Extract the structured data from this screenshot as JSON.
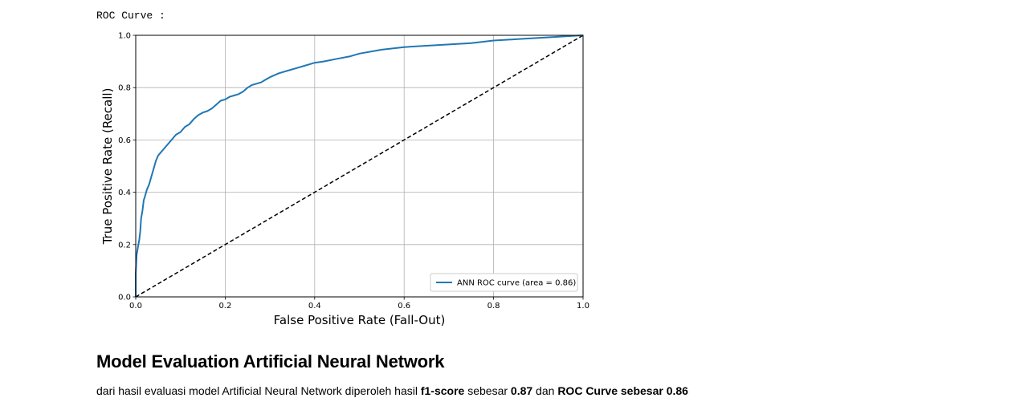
{
  "output": {
    "label": "ROC Curve :"
  },
  "chart_data": {
    "type": "line",
    "xlabel": "False Positive Rate (Fall-Out)",
    "ylabel": "True Positive Rate (Recall)",
    "xlim": [
      0,
      1
    ],
    "ylim": [
      0,
      1
    ],
    "xticks": [
      "0.0",
      "0.2",
      "0.4",
      "0.6",
      "0.8",
      "1.0"
    ],
    "yticks": [
      "0.0",
      "0.2",
      "0.4",
      "0.6",
      "0.8",
      "1.0"
    ],
    "grid": true,
    "legend_position": "lower-right",
    "series": [
      {
        "name": "ANN ROC curve (area = 0.86)",
        "color": "#1f77b4",
        "style": "solid",
        "x": [
          0.0,
          0.0,
          0.002,
          0.004,
          0.006,
          0.008,
          0.01,
          0.012,
          0.015,
          0.018,
          0.02,
          0.025,
          0.03,
          0.035,
          0.04,
          0.045,
          0.05,
          0.055,
          0.06,
          0.07,
          0.08,
          0.09,
          0.1,
          0.11,
          0.12,
          0.13,
          0.14,
          0.15,
          0.16,
          0.17,
          0.18,
          0.19,
          0.2,
          0.21,
          0.22,
          0.23,
          0.24,
          0.25,
          0.26,
          0.27,
          0.28,
          0.29,
          0.3,
          0.32,
          0.34,
          0.36,
          0.38,
          0.4,
          0.42,
          0.45,
          0.48,
          0.5,
          0.55,
          0.6,
          0.65,
          0.7,
          0.75,
          0.8,
          0.85,
          0.9,
          0.95,
          1.0
        ],
        "y": [
          0.0,
          0.09,
          0.16,
          0.18,
          0.2,
          0.22,
          0.25,
          0.3,
          0.33,
          0.37,
          0.38,
          0.41,
          0.43,
          0.46,
          0.49,
          0.52,
          0.54,
          0.55,
          0.56,
          0.58,
          0.6,
          0.62,
          0.63,
          0.65,
          0.66,
          0.68,
          0.695,
          0.705,
          0.71,
          0.72,
          0.735,
          0.75,
          0.755,
          0.765,
          0.77,
          0.775,
          0.785,
          0.8,
          0.81,
          0.815,
          0.82,
          0.83,
          0.84,
          0.855,
          0.865,
          0.875,
          0.885,
          0.895,
          0.9,
          0.91,
          0.92,
          0.93,
          0.945,
          0.955,
          0.96,
          0.965,
          0.97,
          0.98,
          0.985,
          0.99,
          0.995,
          1.0
        ]
      },
      {
        "name": "",
        "color": "#000000",
        "style": "dashed",
        "x": [
          0,
          1
        ],
        "y": [
          0,
          1
        ]
      }
    ]
  },
  "evaluation": {
    "heading": "Model Evaluation Artificial Neural Network",
    "text_prefix": "dari hasil evaluasi model Artificial Neural Network diperoleh hasil ",
    "metric1_name": "f1-score",
    "text_mid1": " sebesar ",
    "metric1_value": "0.87",
    "text_mid2": " dan ",
    "metric2_label": "ROC Curve sebesar 0.86"
  }
}
